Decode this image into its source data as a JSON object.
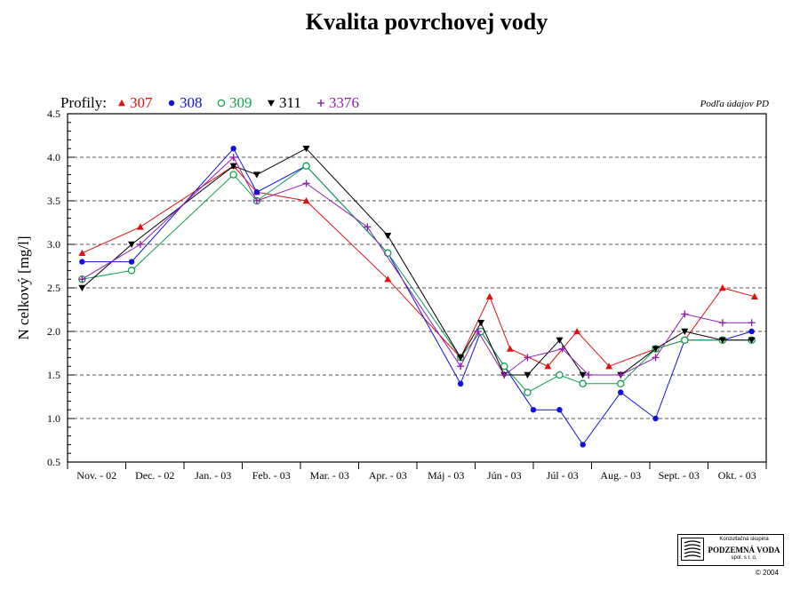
{
  "chart_data": {
    "type": "line",
    "title": "Kvalita povrchovej vody",
    "note": "Podľa údajov PD",
    "legend_prefix": "Profily:",
    "ylabel": "N celkový [mg/l]",
    "xlabel": "",
    "ylim": [
      0.5,
      4.5
    ],
    "yticks": [
      "0.5",
      "1.0",
      "1.5",
      "2.0",
      "2.5",
      "3.0",
      "3.5",
      "4.0",
      "4.5"
    ],
    "grid": "horizontal dashed",
    "legend_position": "top-left",
    "categories": [
      "Nov. - 02",
      "Dec. - 02",
      "Jan. - 03",
      "Feb. - 03",
      "Mar. - 03",
      "Apr. - 03",
      "Máj - 03",
      "Jún - 03",
      "Júl - 03",
      "Aug. - 03",
      "Sept. - 03",
      "Okt. - 03"
    ],
    "series": [
      {
        "name": "307",
        "color": "#e01010",
        "marker": "triangle-up",
        "x": [
          0.25,
          1.25,
          2.85,
          3.25,
          4.1,
          5.5,
          6.75,
          7.25,
          7.6,
          8.25,
          8.75,
          9.3,
          10.1,
          10.6,
          11.25,
          11.8
        ],
        "y": [
          2.9,
          3.2,
          3.9,
          3.6,
          3.5,
          2.6,
          1.7,
          2.4,
          1.8,
          1.6,
          2.0,
          1.6,
          1.8,
          1.9,
          2.5,
          2.4
        ]
      },
      {
        "name": "308",
        "color": "#1010e0",
        "marker": "circle",
        "x": [
          0.25,
          1.1,
          2.85,
          3.25,
          4.1,
          5.5,
          6.75,
          7.1,
          7.5,
          8.0,
          8.45,
          8.85,
          9.5,
          10.1,
          10.6,
          11.25,
          11.75
        ],
        "y": [
          2.8,
          2.8,
          4.1,
          3.6,
          3.9,
          2.9,
          1.4,
          2.0,
          1.6,
          1.1,
          1.1,
          0.7,
          1.3,
          1.0,
          1.9,
          1.9,
          2.0
        ]
      },
      {
        "name": "309",
        "color": "#10a050",
        "marker": "circle-open",
        "x": [
          0.25,
          1.1,
          2.85,
          3.25,
          4.1,
          5.5,
          6.75,
          7.1,
          7.5,
          7.9,
          8.45,
          8.85,
          9.5,
          10.1,
          10.6,
          11.25,
          11.75
        ],
        "y": [
          2.6,
          2.7,
          3.8,
          3.5,
          3.9,
          2.9,
          1.7,
          2.0,
          1.6,
          1.3,
          1.5,
          1.4,
          1.4,
          1.8,
          1.9,
          1.9,
          1.9
        ]
      },
      {
        "name": "311",
        "color": "#000000",
        "marker": "triangle-down",
        "x": [
          0.25,
          1.1,
          2.85,
          3.25,
          4.1,
          5.5,
          6.75,
          7.1,
          7.5,
          7.9,
          8.45,
          8.85,
          9.5,
          10.1,
          10.6,
          11.25,
          11.75
        ],
        "y": [
          2.5,
          3.0,
          3.9,
          3.8,
          4.1,
          3.1,
          1.7,
          2.1,
          1.5,
          1.5,
          1.9,
          1.5,
          1.5,
          1.8,
          2.0,
          1.9,
          1.9
        ]
      },
      {
        "name": "3376",
        "color": "#9020b0",
        "marker": "plus",
        "x": [
          0.25,
          1.25,
          2.85,
          3.25,
          4.1,
          5.15,
          6.75,
          7.05,
          7.5,
          7.9,
          8.5,
          8.95,
          9.5,
          10.1,
          10.6,
          11.25,
          11.75
        ],
        "y": [
          2.6,
          3.0,
          4.0,
          3.5,
          3.7,
          3.2,
          1.6,
          2.0,
          1.5,
          1.7,
          1.8,
          1.5,
          1.5,
          1.7,
          2.2,
          2.1,
          2.1
        ]
      }
    ]
  },
  "footer": {
    "logo_line1": "Konzultačná skupina",
    "logo_line2": "PODZEMNÁ VODA",
    "logo_line3": "spol. s r. o.",
    "copyright": "© 2004"
  }
}
